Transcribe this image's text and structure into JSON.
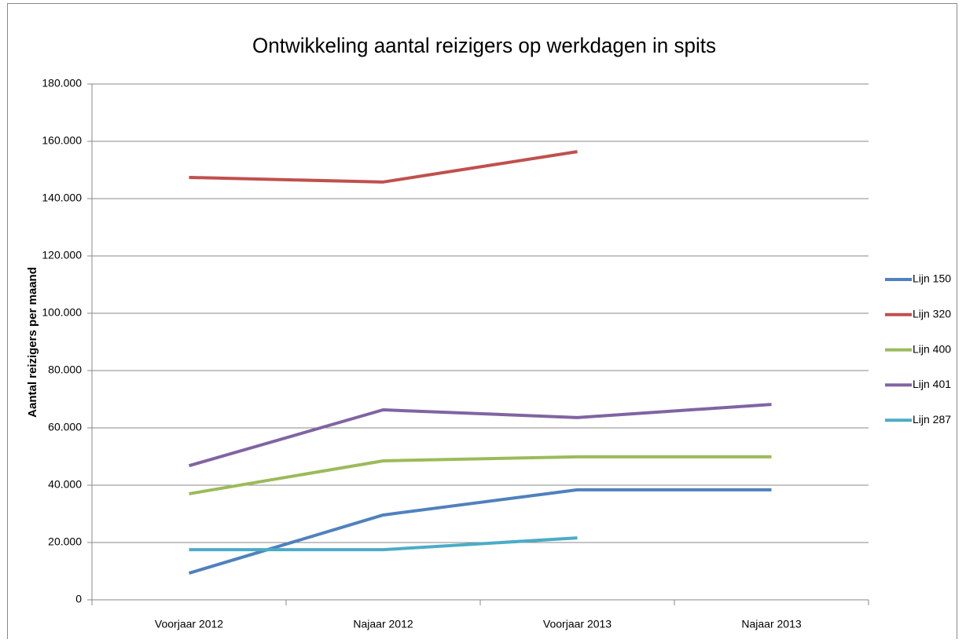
{
  "chart_data": {
    "type": "line",
    "title": "Ontwikkeling aantal reizigers op werkdagen in spits",
    "y_label": "Aantal reizigers per maand",
    "categories": [
      "Voorjaar 2012",
      "Najaar 2012",
      "Voorjaar 2013",
      "Najaar 2013"
    ],
    "series": [
      {
        "name": "Lijn 150",
        "color": "#4f81bd",
        "values": [
          9300,
          29600,
          38400,
          38400
        ]
      },
      {
        "name": "Lijn 320",
        "color": "#c0504d",
        "values": [
          147400,
          145800,
          156400,
          null
        ]
      },
      {
        "name": "Lijn 400",
        "color": "#9bbb59",
        "values": [
          37000,
          48500,
          49900,
          49900
        ]
      },
      {
        "name": "Lijn 401",
        "color": "#8064a2",
        "values": [
          46800,
          66300,
          63600,
          68200
        ]
      },
      {
        "name": "Lijn 287",
        "color": "#4bacc6",
        "values": [
          17500,
          17500,
          21600,
          null
        ]
      }
    ],
    "ylim": [
      0,
      180000
    ],
    "yticks": [
      0,
      {
        "value": 20000,
        "label": "20.000"
      },
      {
        "value": 40000,
        "label": "40.000"
      },
      {
        "value": 60000,
        "label": "60.000"
      },
      {
        "value": 80000,
        "label": "80.000"
      },
      {
        "value": 100000,
        "label": "100.000"
      },
      {
        "value": 120000,
        "label": "120.000"
      },
      {
        "value": 140000,
        "label": "140.000"
      },
      {
        "value": 160000,
        "label": "160.000"
      },
      {
        "value": 180000,
        "label": "180.000"
      }
    ],
    "grid": true,
    "legend": "right"
  }
}
